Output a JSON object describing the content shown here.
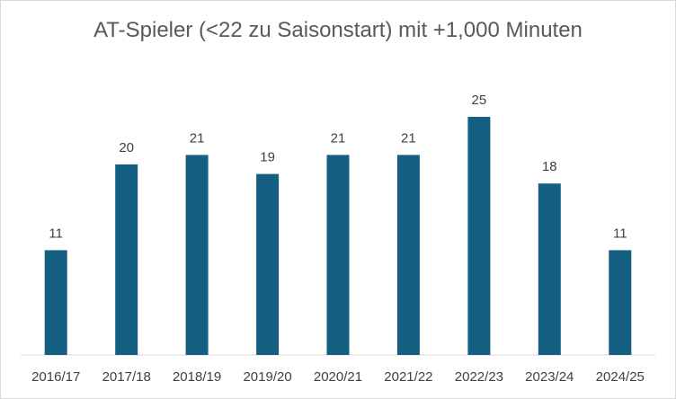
{
  "chart_data": {
    "type": "bar",
    "title": "AT-Spieler (<22 zu Saisonstart) mit +1,000 Minuten",
    "categories": [
      "2016/17",
      "2017/18",
      "2018/19",
      "2019/20",
      "2020/21",
      "2021/22",
      "2022/23",
      "2023/24",
      "2024/25"
    ],
    "values": [
      11,
      20,
      21,
      19,
      21,
      21,
      25,
      18,
      11
    ],
    "data_labels": [
      "11",
      "20",
      "21",
      "19",
      "21",
      "21",
      "25",
      "18",
      "11"
    ],
    "xlabel": "",
    "ylabel": "",
    "ylim": [
      0,
      30
    ],
    "grid": false,
    "legend": "none",
    "bar_color": "#156082"
  }
}
